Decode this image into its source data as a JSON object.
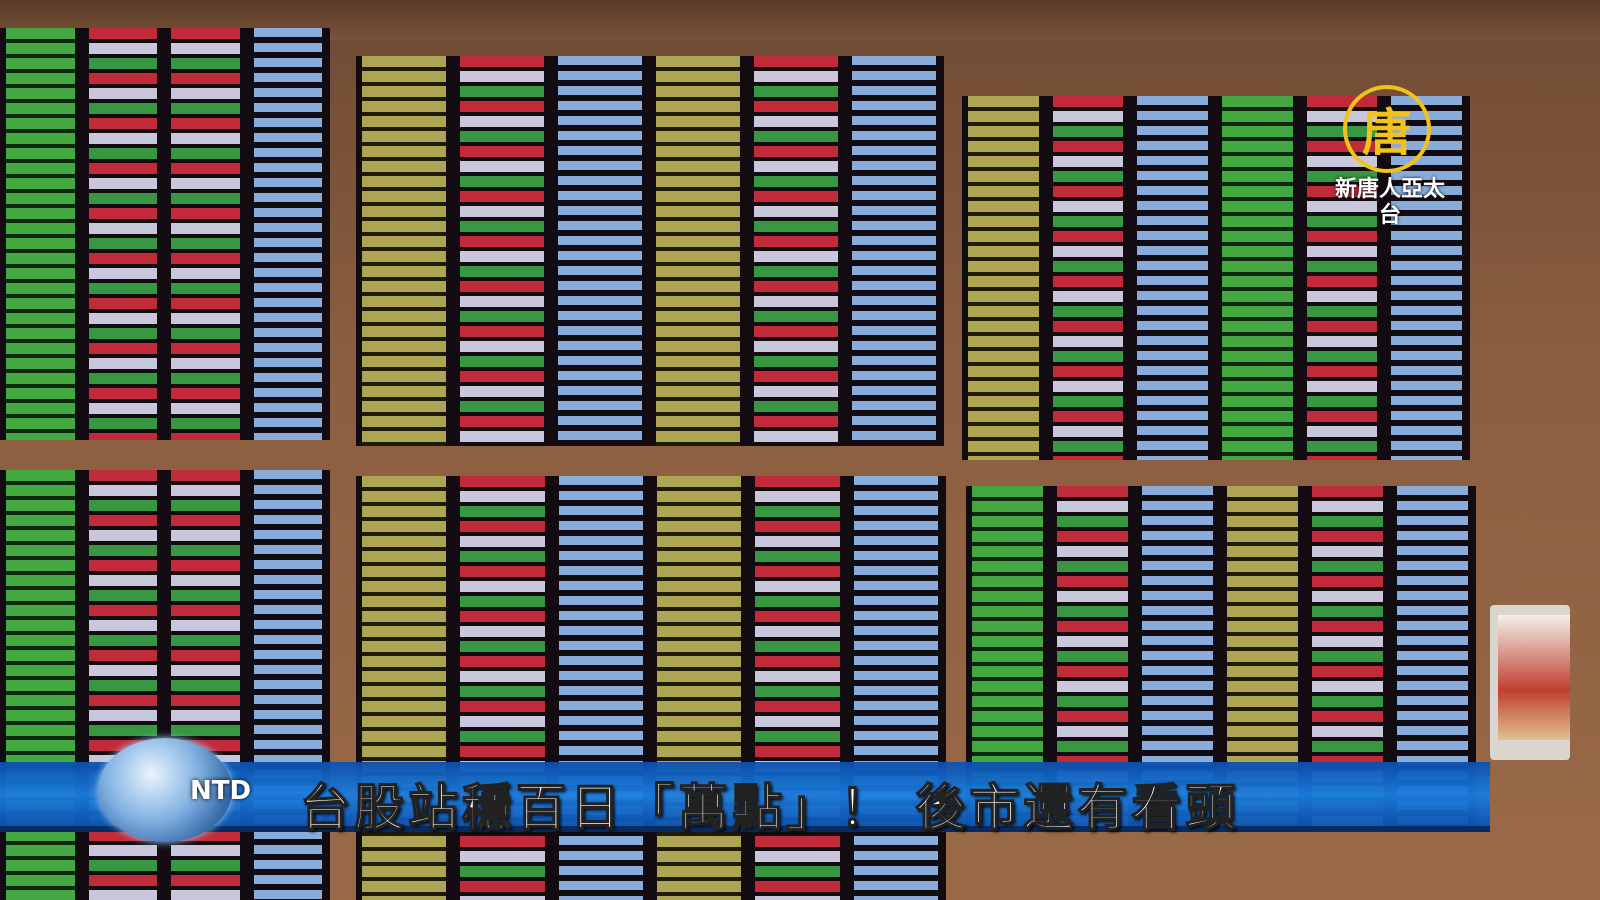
{
  "channel_logo": {
    "emblem": "唐",
    "name": "新唐人亞太台"
  },
  "broadcaster_mark": "NTD",
  "caption": "台股站穩百日「萬點」！ 後市還有看頭",
  "colors": {
    "caption_band": "#1b7ee0",
    "logo": "#f1c21b",
    "price_up": "#d8222c",
    "price_down": "#4cc24a",
    "volume": "#9ec8ff"
  }
}
